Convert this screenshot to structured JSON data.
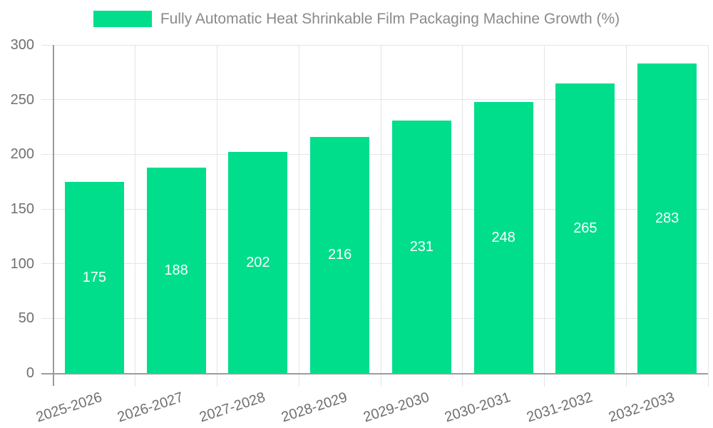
{
  "legend": {
    "label": "Fully Automatic Heat Shrinkable Film Packaging Machine Growth (%)"
  },
  "chart_data": {
    "type": "bar",
    "title": "",
    "categories": [
      "2025-2026",
      "2026-2027",
      "2027-2028",
      "2028-2029",
      "2029-2030",
      "2030-2031",
      "2031-2032",
      "2032-2033"
    ],
    "series": [
      {
        "name": "Fully Automatic Heat Shrinkable Film Packaging Machine Growth (%)",
        "values": [
          175,
          188,
          202,
          216,
          231,
          248,
          265,
          283
        ]
      }
    ],
    "value_labels_shown": true,
    "xlabel": "",
    "ylabel": "",
    "ylim": [
      0,
      300
    ],
    "yticks": [
      0,
      50,
      100,
      150,
      200,
      250,
      300
    ],
    "grid": true,
    "x_tick_rotation_deg": -18,
    "legend_position": "top-center"
  },
  "colors": {
    "bar": "#00DE8C",
    "grid": "#E5E5E5",
    "axis": "#9B9B9B",
    "tick_label": "#707070",
    "legend_text": "#8A8A8A",
    "bar_value_label": "#FFFFFF",
    "background": "#FFFFFF"
  }
}
